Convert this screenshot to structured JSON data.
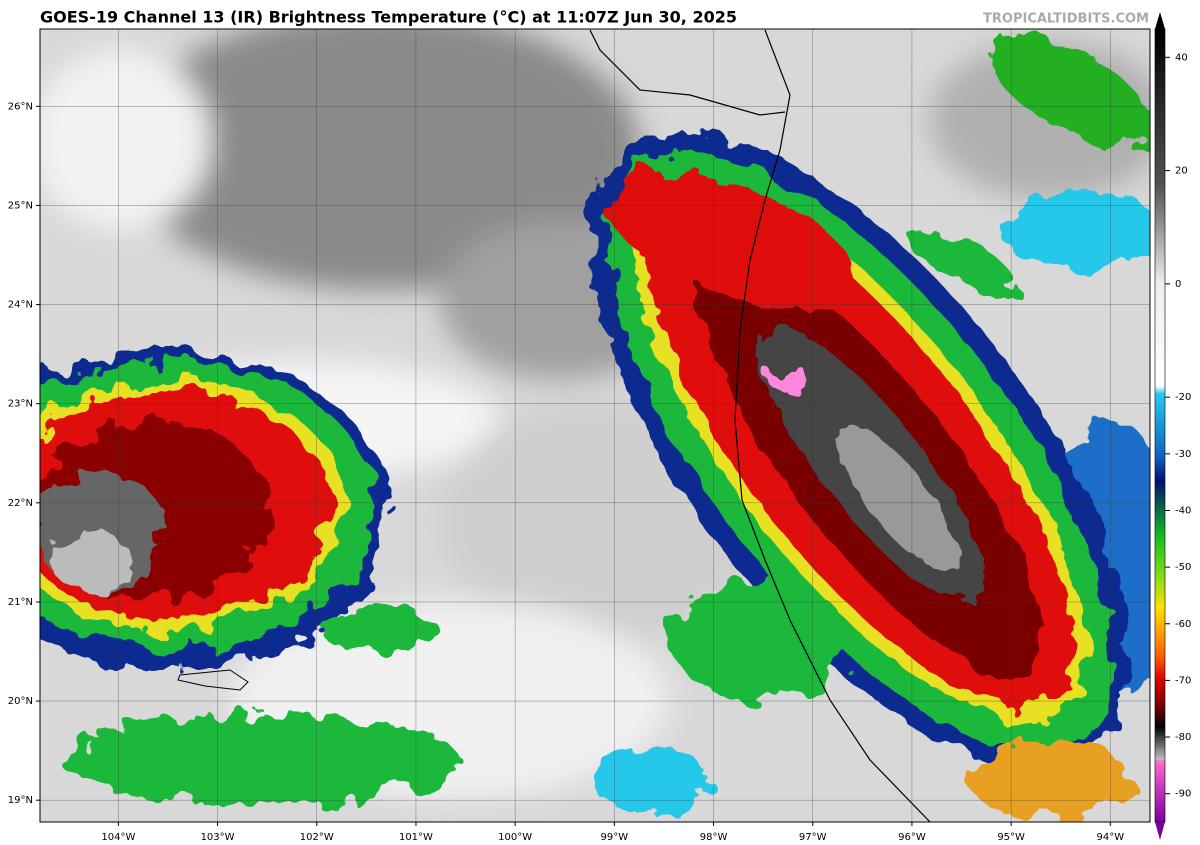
{
  "header": {
    "title": "GOES-19 Channel 13 (IR) Brightness Temperature (°C) at 11:07Z Jun 30, 2025",
    "watermark": "TROPICALTIDBITS.COM"
  },
  "map": {
    "lat_range": [
      18.78,
      26.78
    ],
    "lon_range": [
      -104.79,
      -93.6
    ],
    "lat_ticks": [
      {
        "value": 26,
        "label": "26°N"
      },
      {
        "value": 25,
        "label": "25°N"
      },
      {
        "value": 24,
        "label": "24°N"
      },
      {
        "value": 23,
        "label": "23°N"
      },
      {
        "value": 22,
        "label": "22°N"
      },
      {
        "value": 21,
        "label": "21°N"
      },
      {
        "value": 20,
        "label": "20°N"
      },
      {
        "value": 19,
        "label": "19°N"
      }
    ],
    "lon_ticks": [
      {
        "value": -104,
        "label": "104°W"
      },
      {
        "value": -103,
        "label": "103°W"
      },
      {
        "value": -102,
        "label": "102°W"
      },
      {
        "value": -101,
        "label": "101°W"
      },
      {
        "value": -100,
        "label": "100°W"
      },
      {
        "value": -99,
        "label": "99°W"
      },
      {
        "value": -98,
        "label": "98°W"
      },
      {
        "value": -97,
        "label": "97°W"
      },
      {
        "value": -96,
        "label": "96°W"
      },
      {
        "value": -95,
        "label": "95°W"
      },
      {
        "value": -94,
        "label": "94°W"
      }
    ]
  },
  "colorbar": {
    "range": [
      -95,
      45
    ],
    "ticks": [
      40,
      20,
      0,
      -20,
      -30,
      -40,
      -50,
      -60,
      -70,
      -80,
      -90
    ]
  }
}
